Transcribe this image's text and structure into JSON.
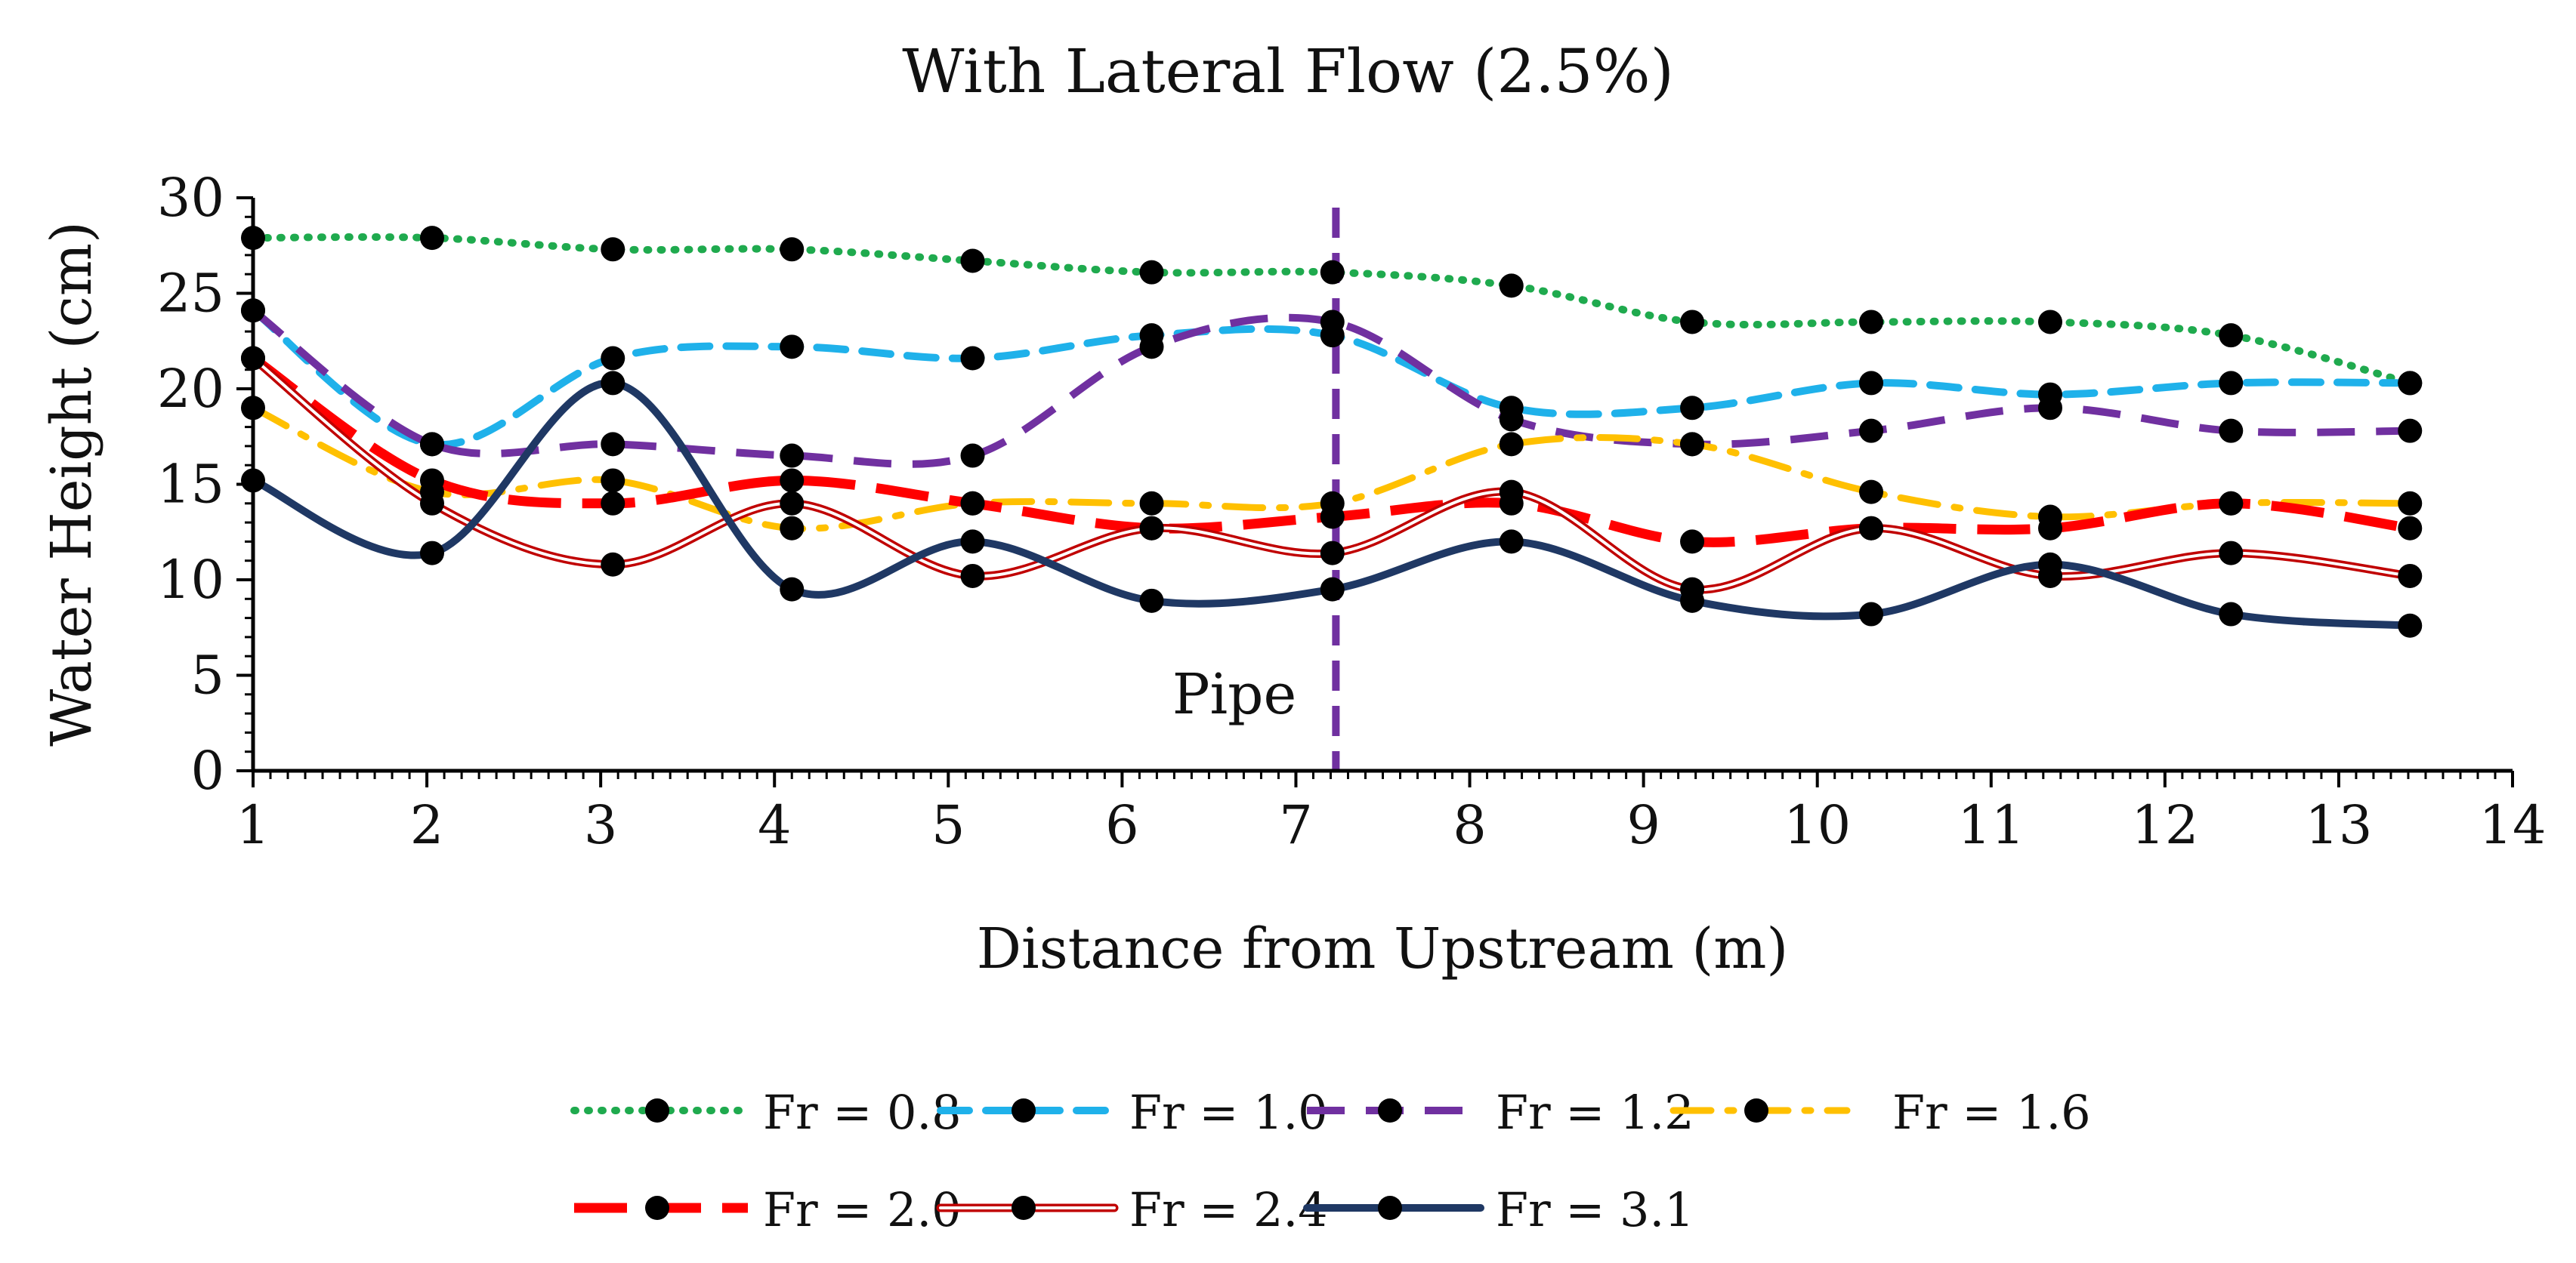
{
  "chart_data": {
    "type": "line",
    "title": "With Lateral Flow (2.5%)",
    "xlabel": "Distance from Upstream (m)",
    "ylabel": "Water Height (cm)",
    "xlim": [
      1,
      14
    ],
    "ylim": [
      0,
      30
    ],
    "xticks": [
      1,
      2,
      3,
      4,
      5,
      6,
      7,
      8,
      9,
      10,
      11,
      12,
      13,
      14
    ],
    "yticks": [
      0,
      5,
      10,
      15,
      20,
      25,
      30
    ],
    "x": [
      1.0,
      2.03,
      3.07,
      4.1,
      5.14,
      6.17,
      7.21,
      8.24,
      9.28,
      10.31,
      11.34,
      12.38,
      13.41
    ],
    "series": [
      {
        "name": "Fr = 0.8",
        "color": "#1faa4e",
        "style": "dotted",
        "values": [
          27.9,
          27.9,
          27.3,
          27.3,
          26.7,
          26.1,
          26.1,
          25.4,
          23.5,
          23.5,
          23.5,
          22.8,
          20.3
        ]
      },
      {
        "name": "Fr = 1.0",
        "color": "#1fb1ea",
        "style": "dashed",
        "values": [
          24.1,
          17.1,
          21.6,
          22.2,
          21.6,
          22.8,
          22.8,
          19.0,
          19.0,
          20.3,
          19.7,
          20.3,
          20.3
        ]
      },
      {
        "name": "Fr = 1.2",
        "color": "#7030a0",
        "style": "longdash",
        "values": [
          24.1,
          17.1,
          17.1,
          16.5,
          16.5,
          22.2,
          23.5,
          18.4,
          17.1,
          17.8,
          19.0,
          17.8,
          17.8
        ]
      },
      {
        "name": "Fr = 1.6",
        "color": "#ffc000",
        "style": "dashdot",
        "values": [
          19.0,
          14.6,
          15.2,
          12.7,
          14.0,
          14.0,
          14.0,
          17.1,
          17.1,
          14.6,
          13.3,
          14.0,
          14.0
        ]
      },
      {
        "name": "Fr = 2.0",
        "color": "#ff0000",
        "style": "heavydash",
        "values": [
          21.6,
          15.2,
          14.0,
          15.2,
          14.0,
          12.7,
          13.3,
          14.0,
          12.0,
          12.7,
          12.7,
          14.0,
          12.7
        ]
      },
      {
        "name": "Fr = 2.4",
        "color": "#c00000",
        "style": "double",
        "values": [
          21.6,
          14.0,
          10.8,
          14.0,
          10.2,
          12.7,
          11.4,
          14.6,
          9.5,
          12.7,
          10.2,
          11.4,
          10.2
        ]
      },
      {
        "name": "Fr = 3.1",
        "color": "#1f3864",
        "style": "solid",
        "values": [
          15.2,
          11.4,
          20.3,
          9.5,
          12.0,
          8.9,
          9.5,
          12.0,
          8.9,
          8.2,
          10.8,
          8.2,
          7.6
        ]
      }
    ],
    "annotations": [
      {
        "type": "vline",
        "x": 7.23,
        "color": "#7030a0",
        "style": "dashed",
        "label": "Pipe"
      }
    ],
    "legend": "bottom"
  }
}
